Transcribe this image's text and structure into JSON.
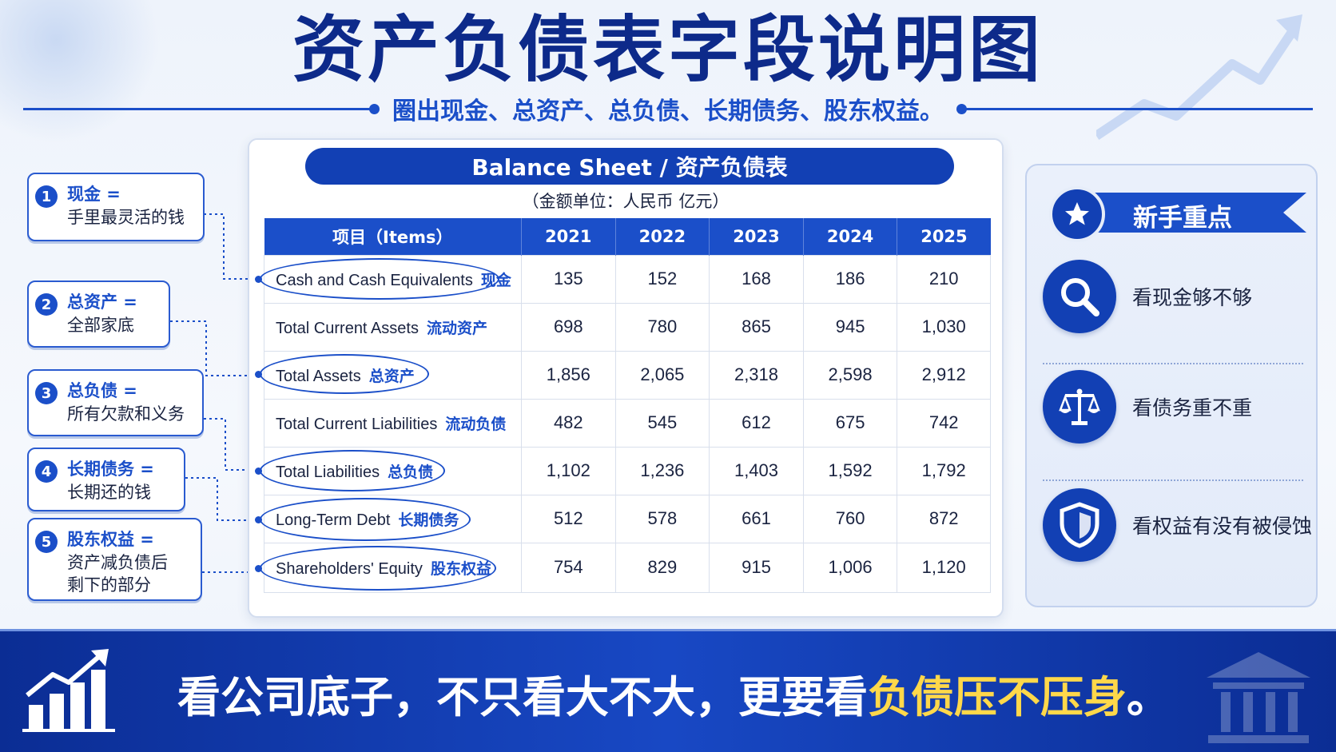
{
  "title": "资产负债表字段说明图",
  "subtitle": "圈出现金、总资产、总负债、长期债务、股东权益。",
  "callouts": [
    {
      "num": "1",
      "head": "现金 =",
      "body": [
        "手里最灵活的钱"
      ]
    },
    {
      "num": "2",
      "head": "总资产 =",
      "body": [
        "全部家底"
      ]
    },
    {
      "num": "3",
      "head": "总负债 =",
      "body": [
        "所有欠款和义务"
      ]
    },
    {
      "num": "4",
      "head": "长期债务 =",
      "body": [
        "长期还的钱"
      ]
    },
    {
      "num": "5",
      "head": "股东权益 =",
      "body": [
        "资产减负债后",
        "剩下的部分"
      ]
    }
  ],
  "card": {
    "banner": "Balance Sheet / 资产负债表",
    "unit": "（金额单位：人民币 亿元）"
  },
  "table": {
    "headers": [
      "项目（Items）",
      "2021",
      "2022",
      "2023",
      "2024",
      "2025"
    ],
    "rows": [
      {
        "en": "Cash and Cash Equivalents",
        "cn": "现金",
        "values": [
          "135",
          "152",
          "168",
          "186",
          "210"
        ],
        "circled": true
      },
      {
        "en": "Total Current Assets",
        "cn": "流动资产",
        "values": [
          "698",
          "780",
          "865",
          "945",
          "1,030"
        ],
        "circled": false
      },
      {
        "en": "Total Assets",
        "cn": "总资产",
        "values": [
          "1,856",
          "2,065",
          "2,318",
          "2,598",
          "2,912"
        ],
        "circled": true
      },
      {
        "en": "Total Current Liabilities",
        "cn": "流动负债",
        "values": [
          "482",
          "545",
          "612",
          "675",
          "742"
        ],
        "circled": false
      },
      {
        "en": "Total Liabilities",
        "cn": "总负债",
        "values": [
          "1,102",
          "1,236",
          "1,403",
          "1,592",
          "1,792"
        ],
        "circled": true
      },
      {
        "en": "Long-Term Debt",
        "cn": "长期债务",
        "values": [
          "512",
          "578",
          "661",
          "760",
          "872"
        ],
        "circled": true
      },
      {
        "en": "Shareholders' Equity",
        "cn": "股东权益",
        "values": [
          "754",
          "829",
          "915",
          "1,006",
          "1,120"
        ],
        "circled": true
      }
    ]
  },
  "panel": {
    "title": "新手重点",
    "items": [
      {
        "icon": "magnifier-icon",
        "label": "看现金够不够"
      },
      {
        "icon": "scale-icon",
        "label": "看债务重不重"
      },
      {
        "icon": "shield-icon",
        "label": "看权益有没有被侵蚀"
      }
    ]
  },
  "bottom": {
    "text_main": "看公司底子，不只看大不大，更要看",
    "text_highlight": "负债压不压身",
    "text_end": "。"
  },
  "colors": {
    "primary": "#1b4fc9",
    "dark": "#0d2a8a",
    "highlight": "#ffd84a"
  }
}
